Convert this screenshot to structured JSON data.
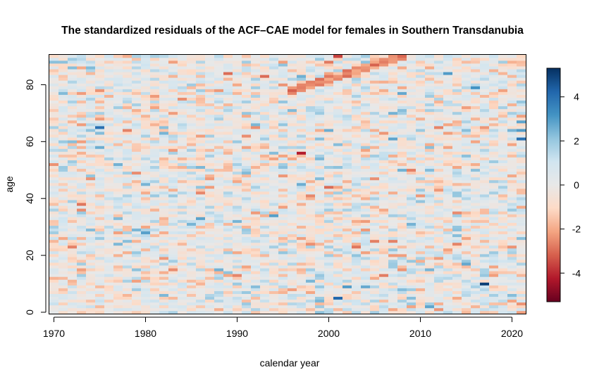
{
  "chart_data": {
    "type": "heatmap",
    "title": "The standardized residuals of the ACF–CAE model for females in Southern Transdanubia",
    "xlabel": "calendar year",
    "ylabel": "age",
    "x_range": [
      1970,
      2021
    ],
    "y_range": [
      0,
      90
    ],
    "xlim": [
      1969.5,
      2021.5
    ],
    "ylim": [
      -0.5,
      90.5
    ],
    "x_ticks": [
      1970,
      1980,
      1990,
      2000,
      2010,
      2020
    ],
    "y_ticks": [
      0,
      20,
      40,
      60,
      80
    ],
    "colorbar": {
      "range": [
        -5.3,
        5.3
      ],
      "ticks": [
        -4,
        -2,
        0,
        2,
        4
      ],
      "palette": [
        "#67001f",
        "#b2182b",
        "#d6604d",
        "#f4a582",
        "#fddbc7",
        "#e8e8e8",
        "#d1e5f0",
        "#92c5de",
        "#4393c3",
        "#2166ac",
        "#053061"
      ]
    },
    "residual_summary": {
      "overall_range": [
        -5.3,
        5.3
      ],
      "typical_spread": 1.0,
      "notable_cells": [
        {
          "year": 2001,
          "age": 5,
          "value": 4.2
        },
        {
          "year": 2017,
          "age": 10,
          "value": 5.0
        },
        {
          "year": 1975,
          "age": 65,
          "value": 4.0
        },
        {
          "year": 1997,
          "age": 56,
          "value": -4.2
        },
        {
          "year": 2001,
          "age": 90,
          "value": -3.6
        },
        {
          "year": 2021,
          "age": 61,
          "value": 4.0
        },
        {
          "year": 2021,
          "age": 64,
          "value": 3.0
        },
        {
          "year": 2021,
          "age": 67,
          "value": 2.8
        },
        {
          "year": 2016,
          "age": 79,
          "value": 3.2
        },
        {
          "year": 2011,
          "age": 2,
          "value": 2.8
        }
      ],
      "negative_diagonal_band": {
        "from": {
          "year": 1996,
          "age": 78
        },
        "to": {
          "year": 2008,
          "age": 90
        },
        "value": -2.5
      }
    }
  }
}
